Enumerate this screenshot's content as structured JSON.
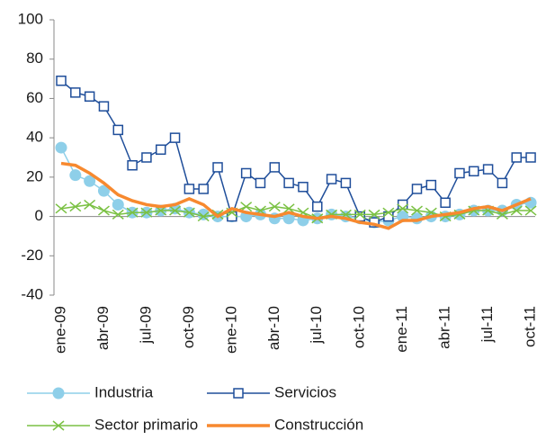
{
  "chart_data": {
    "type": "line",
    "categories": [
      "ene-09",
      null,
      null,
      "abr-09",
      null,
      null,
      "jul-09",
      null,
      null,
      "oct-09",
      null,
      null,
      "ene-10",
      null,
      null,
      "abr-10",
      null,
      null,
      "jul-10",
      null,
      null,
      "oct-10",
      null,
      null,
      "ene-11",
      null,
      null,
      "abr-11",
      null,
      null,
      "jul-11",
      null,
      null,
      "oct-11"
    ],
    "series": [
      {
        "name": "Industria",
        "color": "#8ecfe9",
        "marker": "circle",
        "values": [
          35,
          21,
          18,
          13,
          6,
          2,
          2,
          3,
          4,
          2,
          1,
          0,
          0,
          0,
          1,
          -1,
          -1,
          -2,
          -1,
          1,
          0,
          -1,
          -3,
          -2,
          0,
          -1,
          0,
          0,
          1,
          3,
          3,
          3,
          6,
          7
        ]
      },
      {
        "name": "Servicios",
        "color": "#1f4e9a",
        "marker": "square",
        "values": [
          69,
          63,
          61,
          56,
          44,
          26,
          30,
          34,
          40,
          14,
          14,
          25,
          0,
          22,
          17,
          25,
          17,
          15,
          5,
          19,
          17,
          0,
          -3,
          0,
          6,
          14,
          16,
          7,
          22,
          23,
          24,
          17,
          30,
          30
        ]
      },
      {
        "name": "Sector primario",
        "color": "#7ac143",
        "marker": "x",
        "values": [
          4,
          5,
          6,
          3,
          1,
          2,
          2,
          3,
          3,
          2,
          0,
          1,
          2,
          5,
          3,
          5,
          4,
          2,
          -1,
          1,
          1,
          1,
          1,
          2,
          4,
          3,
          2,
          0,
          1,
          3,
          3,
          1,
          3,
          3
        ]
      },
      {
        "name": "Construcción",
        "color": "#f7892f",
        "marker": "none",
        "values": [
          27,
          26,
          22,
          17,
          11,
          8,
          6,
          5,
          6,
          9,
          6,
          0,
          4,
          2,
          1,
          0,
          2,
          0,
          -1,
          0,
          -1,
          -3,
          -4,
          -6,
          -2,
          -2,
          0,
          1,
          2,
          4,
          5,
          3,
          6,
          9
        ]
      }
    ],
    "ylim": [
      -40,
      100
    ],
    "yticks": [
      -40,
      -20,
      0,
      20,
      40,
      60,
      80,
      100
    ],
    "grid": false
  }
}
